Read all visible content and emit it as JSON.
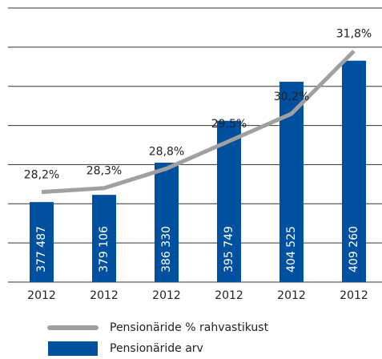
{
  "chart_data": {
    "type": "bar_line",
    "categories": [
      "2012",
      "2012",
      "2012",
      "2012",
      "2012",
      "2012"
    ],
    "series": [
      {
        "name": "Pensionäride arv",
        "type": "bar",
        "color": "#0050a0",
        "values": [
          377487,
          379106,
          386330,
          395749,
          404525,
          409260
        ],
        "value_labels": [
          "377 487",
          "379 106",
          "386 330",
          "395 749",
          "404 525",
          "409 260"
        ]
      },
      {
        "name": "Pensionäride % rahvastikust",
        "type": "line",
        "axis": "y2",
        "color": "#a0a0a0",
        "values": [
          28.2,
          28.3,
          28.8,
          29.5,
          30.2,
          31.8
        ],
        "value_labels": [
          "28,2%",
          "28,3%",
          "28,8%",
          "29,5%",
          "30,2%",
          "31,8%"
        ]
      }
    ],
    "ylim": [
      359500,
      421100
    ],
    "y2lim": [
      25.9,
      32.9
    ],
    "y2ticks": [
      25.9,
      26.9,
      27.9,
      28.9,
      29.9,
      30.9,
      31.9,
      32.9
    ],
    "grid": true
  }
}
